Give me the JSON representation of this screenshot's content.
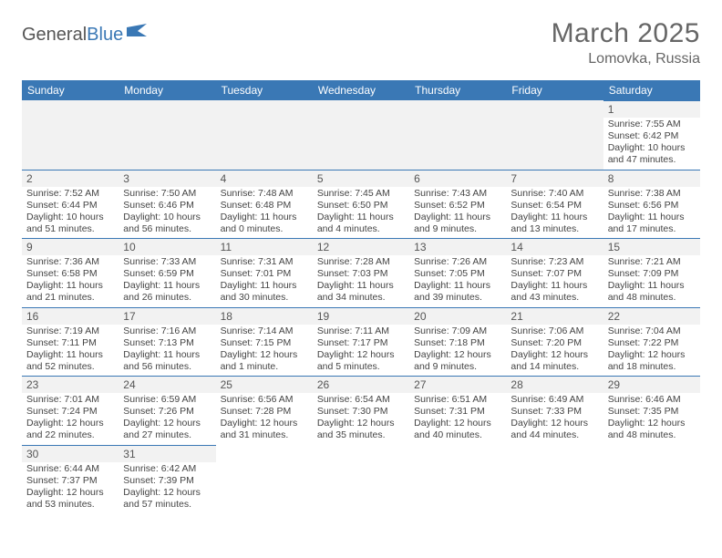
{
  "logo": {
    "part1": "General",
    "part2": "Blue"
  },
  "title": "March 2025",
  "location": "Lomovka, Russia",
  "colors": {
    "header_bg": "#3a78b5",
    "header_text": "#ffffff",
    "cell_border": "#3a78b5",
    "daynum_bg": "#f2f2f2",
    "text": "#444444",
    "title_color": "#666666"
  },
  "layout": {
    "columns": 7,
    "rows": 6,
    "leading_blanks": 6,
    "font_family": "Arial",
    "daynum_fontsize": 12,
    "body_fontsize": 10.5,
    "weekday_fontsize": 12,
    "title_fontsize": 30,
    "location_fontsize": 16
  },
  "weekdays": [
    "Sunday",
    "Monday",
    "Tuesday",
    "Wednesday",
    "Thursday",
    "Friday",
    "Saturday"
  ],
  "days": [
    {
      "n": "1",
      "sr": "Sunrise: 7:55 AM",
      "ss": "Sunset: 6:42 PM",
      "dl1": "Daylight: 10 hours",
      "dl2": "and 47 minutes."
    },
    {
      "n": "2",
      "sr": "Sunrise: 7:52 AM",
      "ss": "Sunset: 6:44 PM",
      "dl1": "Daylight: 10 hours",
      "dl2": "and 51 minutes."
    },
    {
      "n": "3",
      "sr": "Sunrise: 7:50 AM",
      "ss": "Sunset: 6:46 PM",
      "dl1": "Daylight: 10 hours",
      "dl2": "and 56 minutes."
    },
    {
      "n": "4",
      "sr": "Sunrise: 7:48 AM",
      "ss": "Sunset: 6:48 PM",
      "dl1": "Daylight: 11 hours",
      "dl2": "and 0 minutes."
    },
    {
      "n": "5",
      "sr": "Sunrise: 7:45 AM",
      "ss": "Sunset: 6:50 PM",
      "dl1": "Daylight: 11 hours",
      "dl2": "and 4 minutes."
    },
    {
      "n": "6",
      "sr": "Sunrise: 7:43 AM",
      "ss": "Sunset: 6:52 PM",
      "dl1": "Daylight: 11 hours",
      "dl2": "and 9 minutes."
    },
    {
      "n": "7",
      "sr": "Sunrise: 7:40 AM",
      "ss": "Sunset: 6:54 PM",
      "dl1": "Daylight: 11 hours",
      "dl2": "and 13 minutes."
    },
    {
      "n": "8",
      "sr": "Sunrise: 7:38 AM",
      "ss": "Sunset: 6:56 PM",
      "dl1": "Daylight: 11 hours",
      "dl2": "and 17 minutes."
    },
    {
      "n": "9",
      "sr": "Sunrise: 7:36 AM",
      "ss": "Sunset: 6:58 PM",
      "dl1": "Daylight: 11 hours",
      "dl2": "and 21 minutes."
    },
    {
      "n": "10",
      "sr": "Sunrise: 7:33 AM",
      "ss": "Sunset: 6:59 PM",
      "dl1": "Daylight: 11 hours",
      "dl2": "and 26 minutes."
    },
    {
      "n": "11",
      "sr": "Sunrise: 7:31 AM",
      "ss": "Sunset: 7:01 PM",
      "dl1": "Daylight: 11 hours",
      "dl2": "and 30 minutes."
    },
    {
      "n": "12",
      "sr": "Sunrise: 7:28 AM",
      "ss": "Sunset: 7:03 PM",
      "dl1": "Daylight: 11 hours",
      "dl2": "and 34 minutes."
    },
    {
      "n": "13",
      "sr": "Sunrise: 7:26 AM",
      "ss": "Sunset: 7:05 PM",
      "dl1": "Daylight: 11 hours",
      "dl2": "and 39 minutes."
    },
    {
      "n": "14",
      "sr": "Sunrise: 7:23 AM",
      "ss": "Sunset: 7:07 PM",
      "dl1": "Daylight: 11 hours",
      "dl2": "and 43 minutes."
    },
    {
      "n": "15",
      "sr": "Sunrise: 7:21 AM",
      "ss": "Sunset: 7:09 PM",
      "dl1": "Daylight: 11 hours",
      "dl2": "and 48 minutes."
    },
    {
      "n": "16",
      "sr": "Sunrise: 7:19 AM",
      "ss": "Sunset: 7:11 PM",
      "dl1": "Daylight: 11 hours",
      "dl2": "and 52 minutes."
    },
    {
      "n": "17",
      "sr": "Sunrise: 7:16 AM",
      "ss": "Sunset: 7:13 PM",
      "dl1": "Daylight: 11 hours",
      "dl2": "and 56 minutes."
    },
    {
      "n": "18",
      "sr": "Sunrise: 7:14 AM",
      "ss": "Sunset: 7:15 PM",
      "dl1": "Daylight: 12 hours",
      "dl2": "and 1 minute."
    },
    {
      "n": "19",
      "sr": "Sunrise: 7:11 AM",
      "ss": "Sunset: 7:17 PM",
      "dl1": "Daylight: 12 hours",
      "dl2": "and 5 minutes."
    },
    {
      "n": "20",
      "sr": "Sunrise: 7:09 AM",
      "ss": "Sunset: 7:18 PM",
      "dl1": "Daylight: 12 hours",
      "dl2": "and 9 minutes."
    },
    {
      "n": "21",
      "sr": "Sunrise: 7:06 AM",
      "ss": "Sunset: 7:20 PM",
      "dl1": "Daylight: 12 hours",
      "dl2": "and 14 minutes."
    },
    {
      "n": "22",
      "sr": "Sunrise: 7:04 AM",
      "ss": "Sunset: 7:22 PM",
      "dl1": "Daylight: 12 hours",
      "dl2": "and 18 minutes."
    },
    {
      "n": "23",
      "sr": "Sunrise: 7:01 AM",
      "ss": "Sunset: 7:24 PM",
      "dl1": "Daylight: 12 hours",
      "dl2": "and 22 minutes."
    },
    {
      "n": "24",
      "sr": "Sunrise: 6:59 AM",
      "ss": "Sunset: 7:26 PM",
      "dl1": "Daylight: 12 hours",
      "dl2": "and 27 minutes."
    },
    {
      "n": "25",
      "sr": "Sunrise: 6:56 AM",
      "ss": "Sunset: 7:28 PM",
      "dl1": "Daylight: 12 hours",
      "dl2": "and 31 minutes."
    },
    {
      "n": "26",
      "sr": "Sunrise: 6:54 AM",
      "ss": "Sunset: 7:30 PM",
      "dl1": "Daylight: 12 hours",
      "dl2": "and 35 minutes."
    },
    {
      "n": "27",
      "sr": "Sunrise: 6:51 AM",
      "ss": "Sunset: 7:31 PM",
      "dl1": "Daylight: 12 hours",
      "dl2": "and 40 minutes."
    },
    {
      "n": "28",
      "sr": "Sunrise: 6:49 AM",
      "ss": "Sunset: 7:33 PM",
      "dl1": "Daylight: 12 hours",
      "dl2": "and 44 minutes."
    },
    {
      "n": "29",
      "sr": "Sunrise: 6:46 AM",
      "ss": "Sunset: 7:35 PM",
      "dl1": "Daylight: 12 hours",
      "dl2": "and 48 minutes."
    },
    {
      "n": "30",
      "sr": "Sunrise: 6:44 AM",
      "ss": "Sunset: 7:37 PM",
      "dl1": "Daylight: 12 hours",
      "dl2": "and 53 minutes."
    },
    {
      "n": "31",
      "sr": "Sunrise: 6:42 AM",
      "ss": "Sunset: 7:39 PM",
      "dl1": "Daylight: 12 hours",
      "dl2": "and 57 minutes."
    }
  ]
}
